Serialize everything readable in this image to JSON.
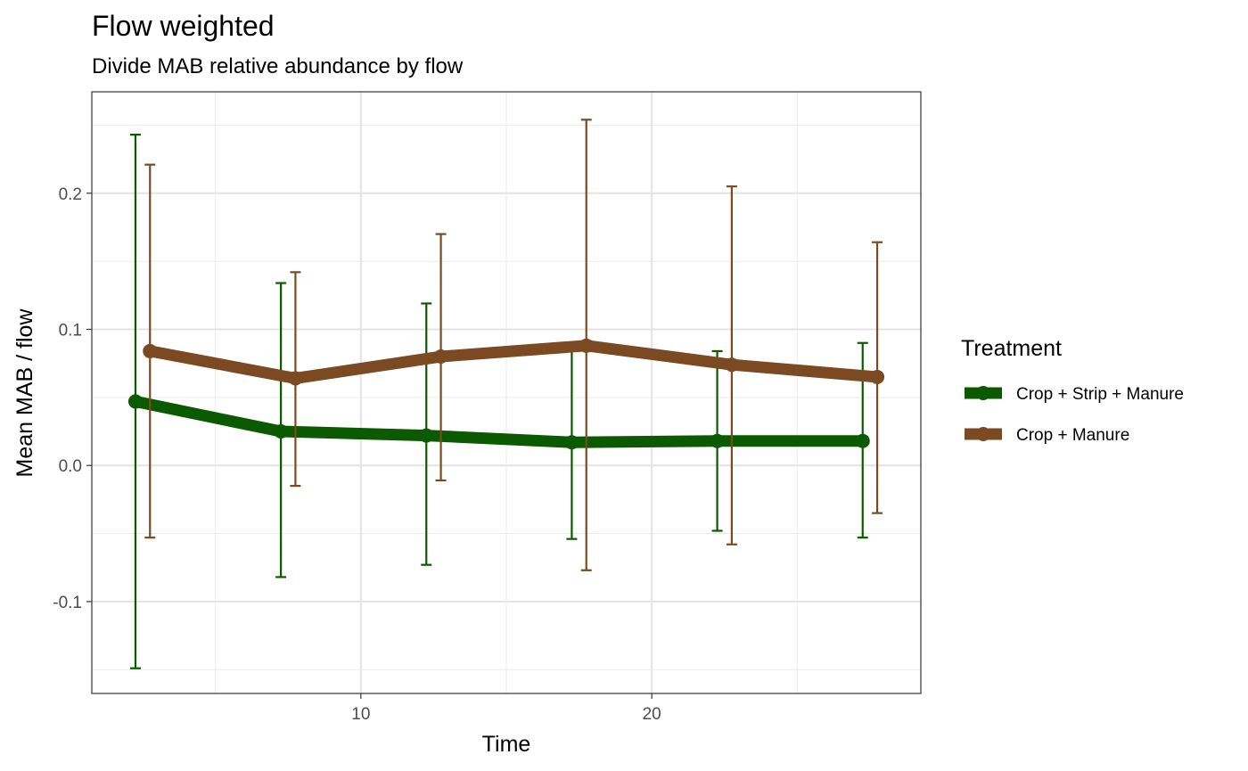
{
  "chart_data": {
    "type": "line",
    "title": "Flow weighted",
    "subtitle": "Divide MAB relative abundance by flow",
    "xlabel": "Time",
    "ylabel": "Mean MAB / flow",
    "xlim": [
      0.75,
      29.25
    ],
    "ylim": [
      -0.1675,
      0.2745
    ],
    "x_ticks": [
      10,
      20
    ],
    "x_tick_labels": [
      "10",
      "20"
    ],
    "y_ticks": [
      -0.1,
      0.0,
      0.1,
      0.2
    ],
    "y_tick_labels": [
      "-0.1",
      "0.0",
      "0.1",
      "0.2"
    ],
    "grid": true,
    "legend": {
      "title": "Treatment",
      "position": "right"
    },
    "series": [
      {
        "name": "Crop + Strip + Manure",
        "color": "#0b5a00",
        "x": [
          2.25,
          7.25,
          12.25,
          17.25,
          22.25,
          27.25
        ],
        "y": [
          0.047,
          0.025,
          0.022,
          0.017,
          0.018,
          0.018
        ],
        "error_low": [
          -0.149,
          -0.082,
          -0.073,
          -0.054,
          -0.048,
          -0.053
        ],
        "error_high": [
          0.243,
          0.134,
          0.119,
          0.089,
          0.084,
          0.09
        ]
      },
      {
        "name": "Crop + Manure",
        "color": "#7b4a22",
        "x": [
          2.75,
          7.75,
          12.75,
          17.75,
          22.75,
          27.75
        ],
        "y": [
          0.084,
          0.064,
          0.08,
          0.088,
          0.074,
          0.065
        ],
        "error_low": [
          -0.053,
          -0.015,
          -0.011,
          -0.077,
          -0.058,
          -0.035
        ],
        "error_high": [
          0.221,
          0.142,
          0.17,
          0.254,
          0.205,
          0.164
        ]
      }
    ]
  }
}
